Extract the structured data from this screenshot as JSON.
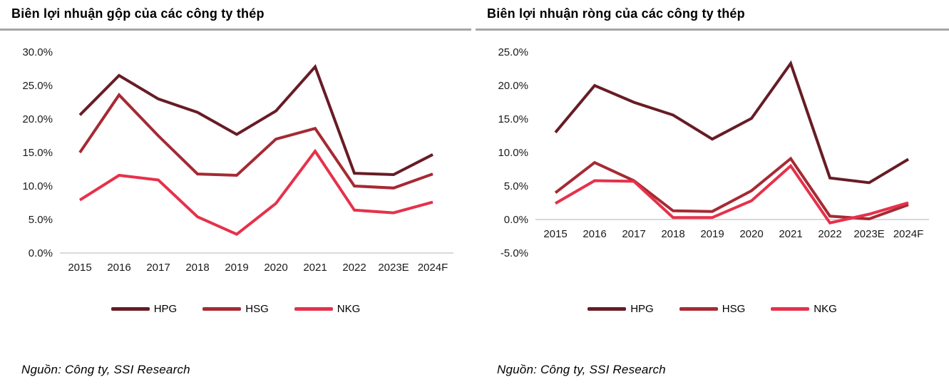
{
  "panels": [
    {
      "title": "Biên lợi nhuận gộp của các công ty thép",
      "source": "Nguồn: Công ty, SSI Research"
    },
    {
      "title": "Biên lợi nhuận ròng  của các công ty thép",
      "source": "Nguồn: Công ty, SSI Research"
    }
  ],
  "colors": {
    "hpg": "#671c25",
    "hsg": "#a52a33",
    "nkg": "#e6314b",
    "zero_line": "#d9d9d9",
    "title_rule": "#a6a6a6",
    "tick_text": "#1a1a1a"
  },
  "chart_data": [
    {
      "type": "line",
      "title": "Biên lợi nhuận gộp của các công ty thép",
      "categories": [
        "2015",
        "2016",
        "2017",
        "2018",
        "2019",
        "2020",
        "2021",
        "2022",
        "2023E",
        "2024F"
      ],
      "series": [
        {
          "name": "HPG",
          "color": "#671c25",
          "values": [
            20.6,
            26.5,
            23.0,
            21.0,
            17.7,
            21.2,
            27.8,
            11.9,
            11.7,
            14.7
          ]
        },
        {
          "name": "HSG",
          "color": "#a52a33",
          "values": [
            15.0,
            23.6,
            17.5,
            11.8,
            11.6,
            17.0,
            18.6,
            10.0,
            9.7,
            11.8
          ]
        },
        {
          "name": "NKG",
          "color": "#e6314b",
          "values": [
            7.9,
            11.6,
            10.9,
            5.4,
            2.8,
            7.4,
            15.2,
            6.4,
            6.0,
            7.6
          ]
        }
      ],
      "xlabel": "",
      "ylabel": "",
      "ylim": [
        0,
        30
      ],
      "ytick_step": 5,
      "ytick_format": "percent_1dp",
      "grid": false,
      "legend_position": "bottom"
    },
    {
      "type": "line",
      "title": "Biên lợi nhuận ròng  của các công ty thép",
      "categories": [
        "2015",
        "2016",
        "2017",
        "2018",
        "2019",
        "2020",
        "2021",
        "2022",
        "2023E",
        "2024F"
      ],
      "series": [
        {
          "name": "HPG",
          "color": "#671c25",
          "values": [
            13.0,
            20.0,
            17.5,
            15.6,
            12.0,
            15.1,
            23.3,
            6.2,
            5.5,
            9.0
          ]
        },
        {
          "name": "HSG",
          "color": "#a52a33",
          "values": [
            4.0,
            8.5,
            5.8,
            1.3,
            1.2,
            4.3,
            9.1,
            0.5,
            0.1,
            2.2
          ]
        },
        {
          "name": "NKG",
          "color": "#e6314b",
          "values": [
            2.4,
            5.8,
            5.7,
            0.3,
            0.3,
            2.8,
            8.0,
            -0.5,
            0.8,
            2.5
          ]
        }
      ],
      "xlabel": "",
      "ylabel": "",
      "ylim": [
        -5,
        25
      ],
      "ytick_step": 5,
      "ytick_format": "percent_1dp",
      "grid": false,
      "legend_position": "bottom"
    }
  ]
}
